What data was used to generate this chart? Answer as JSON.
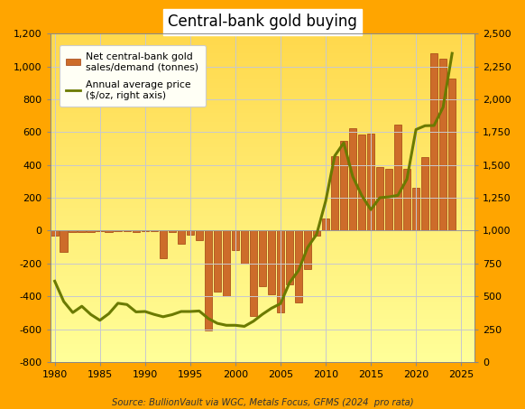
{
  "title": "Central-bank gold buying",
  "source": "Source: BullionVault via WGC, Metals Focus, GFMS (2024  pro rata)",
  "bar_legend": "Net central-bank gold\nsales/demand (tonnes)",
  "line_legend": "Annual average price\n($/oz, right axis)",
  "bar_color": "#CD6C2A",
  "bar_edge_color": "#A04010",
  "line_color": "#6B7A00",
  "background_outer": "#FFA500",
  "background_inner_top": "#FFD700",
  "background_inner_bottom": "#FFFF99",
  "grid_color": "#C8C8D0",
  "ylim_left": [
    -800,
    1200
  ],
  "ylim_right": [
    0,
    2500
  ],
  "yticks_left": [
    -800,
    -600,
    -400,
    -200,
    0,
    200,
    400,
    600,
    800,
    1000,
    1200
  ],
  "yticks_right": [
    0,
    250,
    500,
    750,
    1000,
    1250,
    1500,
    1750,
    2000,
    2250,
    2500
  ],
  "xlim": [
    1979.5,
    2026.5
  ],
  "xticks": [
    1980,
    1985,
    1990,
    1995,
    2000,
    2005,
    2010,
    2015,
    2020,
    2025
  ],
  "years": [
    1980,
    1981,
    1982,
    1983,
    1984,
    1985,
    1986,
    1987,
    1988,
    1989,
    1990,
    1991,
    1992,
    1993,
    1994,
    1995,
    1996,
    1997,
    1998,
    1999,
    2000,
    2001,
    2002,
    2003,
    2004,
    2005,
    2006,
    2007,
    2008,
    2009,
    2010,
    2011,
    2012,
    2013,
    2014,
    2015,
    2016,
    2017,
    2018,
    2019,
    2020,
    2021,
    2022,
    2023,
    2024
  ],
  "bar_values": [
    -30,
    -130,
    -10,
    -10,
    -10,
    -5,
    -10,
    -5,
    -5,
    -10,
    -5,
    -5,
    -170,
    -10,
    -80,
    -25,
    -60,
    -610,
    -370,
    -400,
    -120,
    -200,
    -520,
    -340,
    -390,
    -500,
    -330,
    -440,
    -235,
    -30,
    75,
    455,
    545,
    625,
    585,
    590,
    385,
    375,
    645,
    375,
    260,
    450,
    1080,
    1050,
    925
  ],
  "price_values": [
    615,
    460,
    376,
    424,
    361,
    317,
    368,
    447,
    437,
    381,
    384,
    362,
    344,
    360,
    384,
    384,
    388,
    331,
    294,
    279,
    279,
    271,
    310,
    363,
    409,
    444,
    604,
    697,
    872,
    972,
    1225,
    1569,
    1669,
    1411,
    1267,
    1160,
    1251,
    1257,
    1269,
    1393,
    1770,
    1799,
    1801,
    1940,
    2350
  ]
}
